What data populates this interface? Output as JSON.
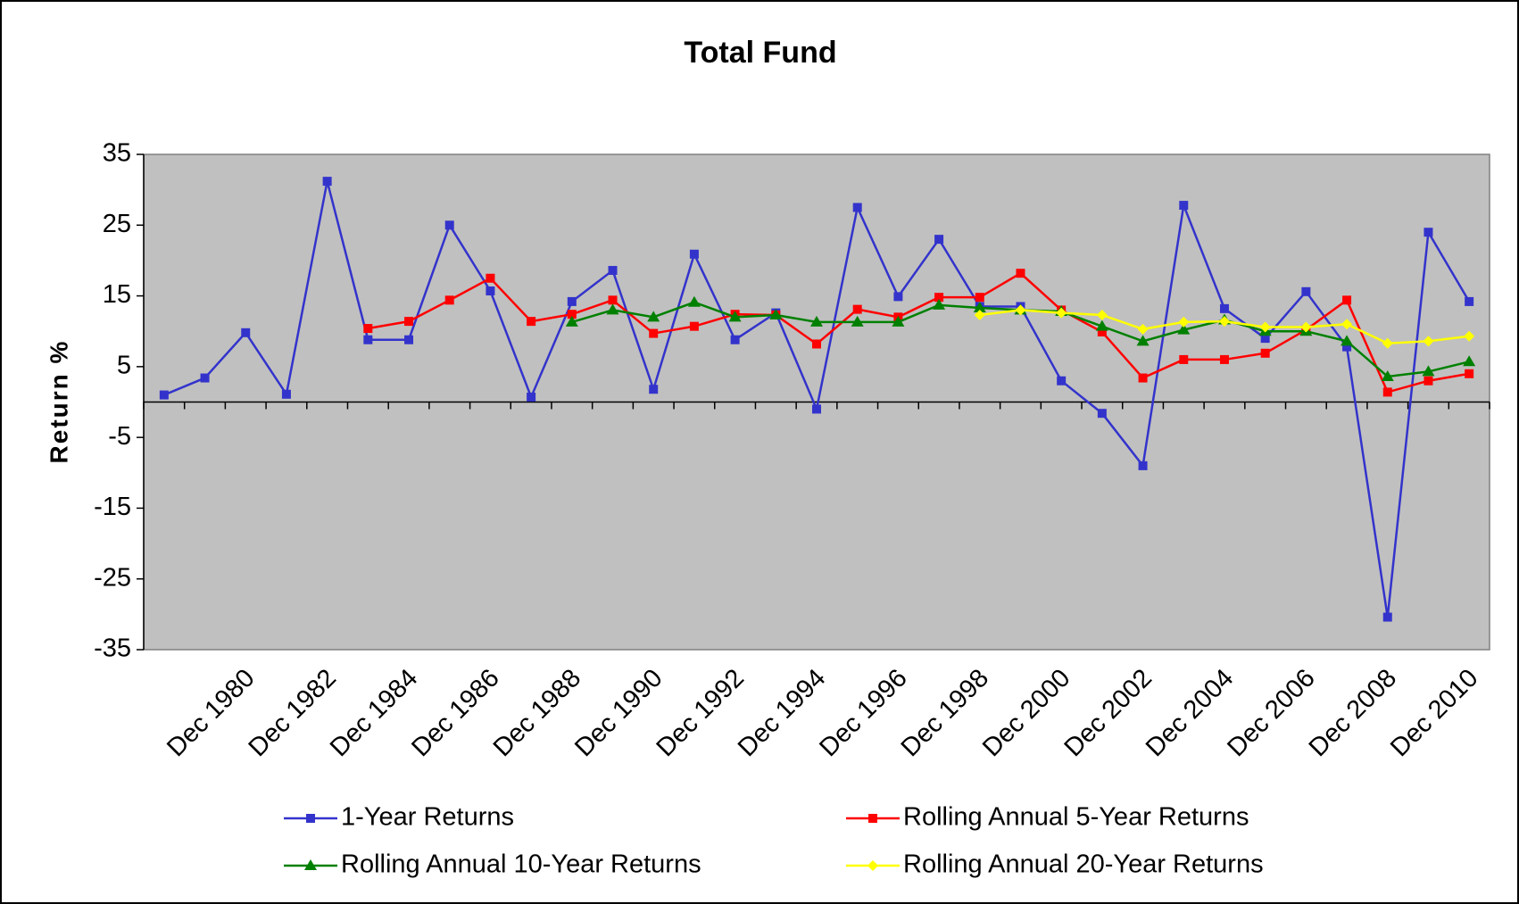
{
  "chart_data": {
    "type": "line",
    "title": "Total Fund",
    "y_label": "Return %",
    "categories": [
      null,
      null,
      "Dec 1980",
      null,
      "Dec 1982",
      null,
      "Dec 1984",
      null,
      "Dec 1986",
      null,
      "Dec 1988",
      null,
      "Dec 1990",
      null,
      "Dec 1992",
      null,
      "Dec 1994",
      null,
      "Dec 1996",
      null,
      "Dec 1998",
      null,
      "Dec 2000",
      null,
      "Dec 2002",
      null,
      "Dec 2004",
      null,
      "Dec 2006",
      null,
      "Dec 2008",
      null,
      "Dec 2010"
    ],
    "series": [
      {
        "name": "1-Year Returns",
        "color": "#3333cc",
        "marker": "square",
        "values": [
          1.0,
          3.4,
          9.8,
          1.1,
          31.2,
          8.8,
          8.8,
          25.0,
          15.7,
          0.7,
          14.2,
          18.6,
          1.8,
          20.9,
          8.8,
          12.6,
          -1.0,
          27.5,
          14.9,
          23.0,
          13.5,
          13.5,
          3.0,
          -1.6,
          -9.0,
          27.8,
          13.2,
          9.0,
          15.6,
          7.8,
          -30.4,
          24.0,
          14.2
        ]
      },
      {
        "name": "Rolling Annual 5-Year Returns",
        "color": "#ff0000",
        "marker": "square",
        "values": [
          null,
          null,
          null,
          null,
          null,
          10.4,
          11.4,
          14.4,
          17.5,
          11.4,
          12.4,
          14.4,
          9.7,
          10.7,
          12.4,
          12.3,
          8.2,
          13.1,
          12.0,
          14.8,
          14.8,
          18.2,
          13.0,
          9.9,
          3.4,
          6.0,
          6.0,
          6.9,
          10.2,
          14.4,
          1.4,
          3.0,
          4.0
        ]
      },
      {
        "name": "Rolling Annual 10-Year Returns",
        "color": "#008000",
        "marker": "triangle",
        "values": [
          null,
          null,
          null,
          null,
          null,
          null,
          null,
          null,
          null,
          null,
          11.3,
          13.0,
          12.0,
          14.1,
          12.0,
          12.3,
          11.3,
          11.3,
          11.3,
          13.7,
          13.3,
          13.0,
          12.8,
          10.7,
          8.6,
          10.2,
          11.6,
          10.0,
          10.0,
          8.6,
          3.6,
          4.3,
          5.7
        ]
      },
      {
        "name": "Rolling Annual 20-Year Returns",
        "color": "#ffff00",
        "marker": "diamond",
        "values": [
          null,
          null,
          null,
          null,
          null,
          null,
          null,
          null,
          null,
          null,
          null,
          null,
          null,
          null,
          null,
          null,
          null,
          null,
          null,
          null,
          12.3,
          13.0,
          12.6,
          12.3,
          10.3,
          11.3,
          11.4,
          10.6,
          10.6,
          11.0,
          8.3,
          8.6,
          9.3
        ]
      }
    ],
    "ylim": [
      -35,
      35
    ],
    "yticks": [
      -35,
      -25,
      -15,
      -5,
      5,
      15,
      25,
      35
    ],
    "plot_background": "#c0c0c0"
  }
}
